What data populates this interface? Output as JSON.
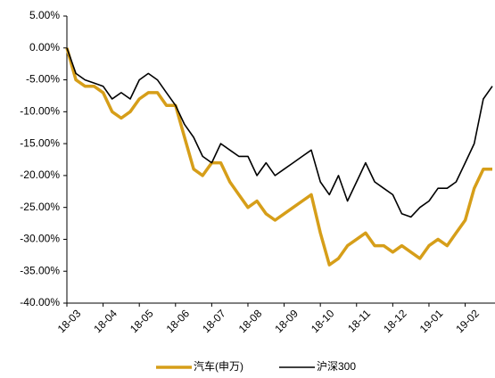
{
  "chart_data": {
    "type": "line",
    "categories": [
      "18-03",
      null,
      null,
      null,
      "18-04",
      null,
      null,
      null,
      "18-05",
      null,
      null,
      null,
      "18-06",
      null,
      null,
      null,
      "18-07",
      null,
      null,
      null,
      "18-08",
      null,
      null,
      null,
      "18-09",
      null,
      null,
      null,
      "18-10",
      null,
      null,
      null,
      "18-11",
      null,
      null,
      null,
      "18-12",
      null,
      null,
      null,
      "19-01",
      null,
      null,
      null,
      "19-02",
      null,
      null,
      null
    ],
    "series": [
      {
        "name": "汽车(申万)",
        "color": "#d69e19",
        "values": [
          0,
          -5,
          -6,
          -6,
          -7,
          -10,
          -11,
          -10,
          -8,
          -7,
          -7,
          -9,
          -9,
          -14,
          -19,
          -20,
          -18,
          -18,
          -21,
          -23,
          -25,
          -24,
          -26,
          -27,
          -26,
          -25,
          -24,
          -23,
          -29,
          -34,
          -33,
          -31,
          -30,
          -29,
          -31,
          -31,
          -32,
          -31,
          -32,
          -33,
          -31,
          -30,
          -31,
          -29,
          -27,
          -22,
          -19,
          -19
        ]
      },
      {
        "name": "沪深300",
        "color": "#000000",
        "values": [
          0,
          -4,
          -5,
          -5.5,
          -6,
          -8,
          -7,
          -8,
          -5,
          -4,
          -5,
          -7,
          -9,
          -12,
          -14,
          -17,
          -18,
          -15,
          -16,
          -17,
          -17,
          -20,
          -18,
          -20,
          -19,
          -18,
          -17,
          -16,
          -21,
          -23,
          -20,
          -24,
          -21,
          -18,
          -21,
          -22,
          -23,
          -26,
          -26.5,
          -25,
          -24,
          -22,
          -22,
          -21,
          -18,
          -15,
          -8,
          -6
        ]
      }
    ],
    "ylim": [
      -40,
      5
    ],
    "yticks": [
      {
        "value": 5,
        "label": "5.00%"
      },
      {
        "value": 0,
        "label": "0.00%"
      },
      {
        "value": -5,
        "label": "-5.00%"
      },
      {
        "value": -10,
        "label": "-10.00%"
      },
      {
        "value": -15,
        "label": "-15.00%"
      },
      {
        "value": -20,
        "label": "-20.00%"
      },
      {
        "value": -25,
        "label": "-25.00%"
      },
      {
        "value": -30,
        "label": "-30.00%"
      },
      {
        "value": -35,
        "label": "-35.00%"
      },
      {
        "value": -40,
        "label": "-40.00%"
      }
    ],
    "grid": false
  }
}
